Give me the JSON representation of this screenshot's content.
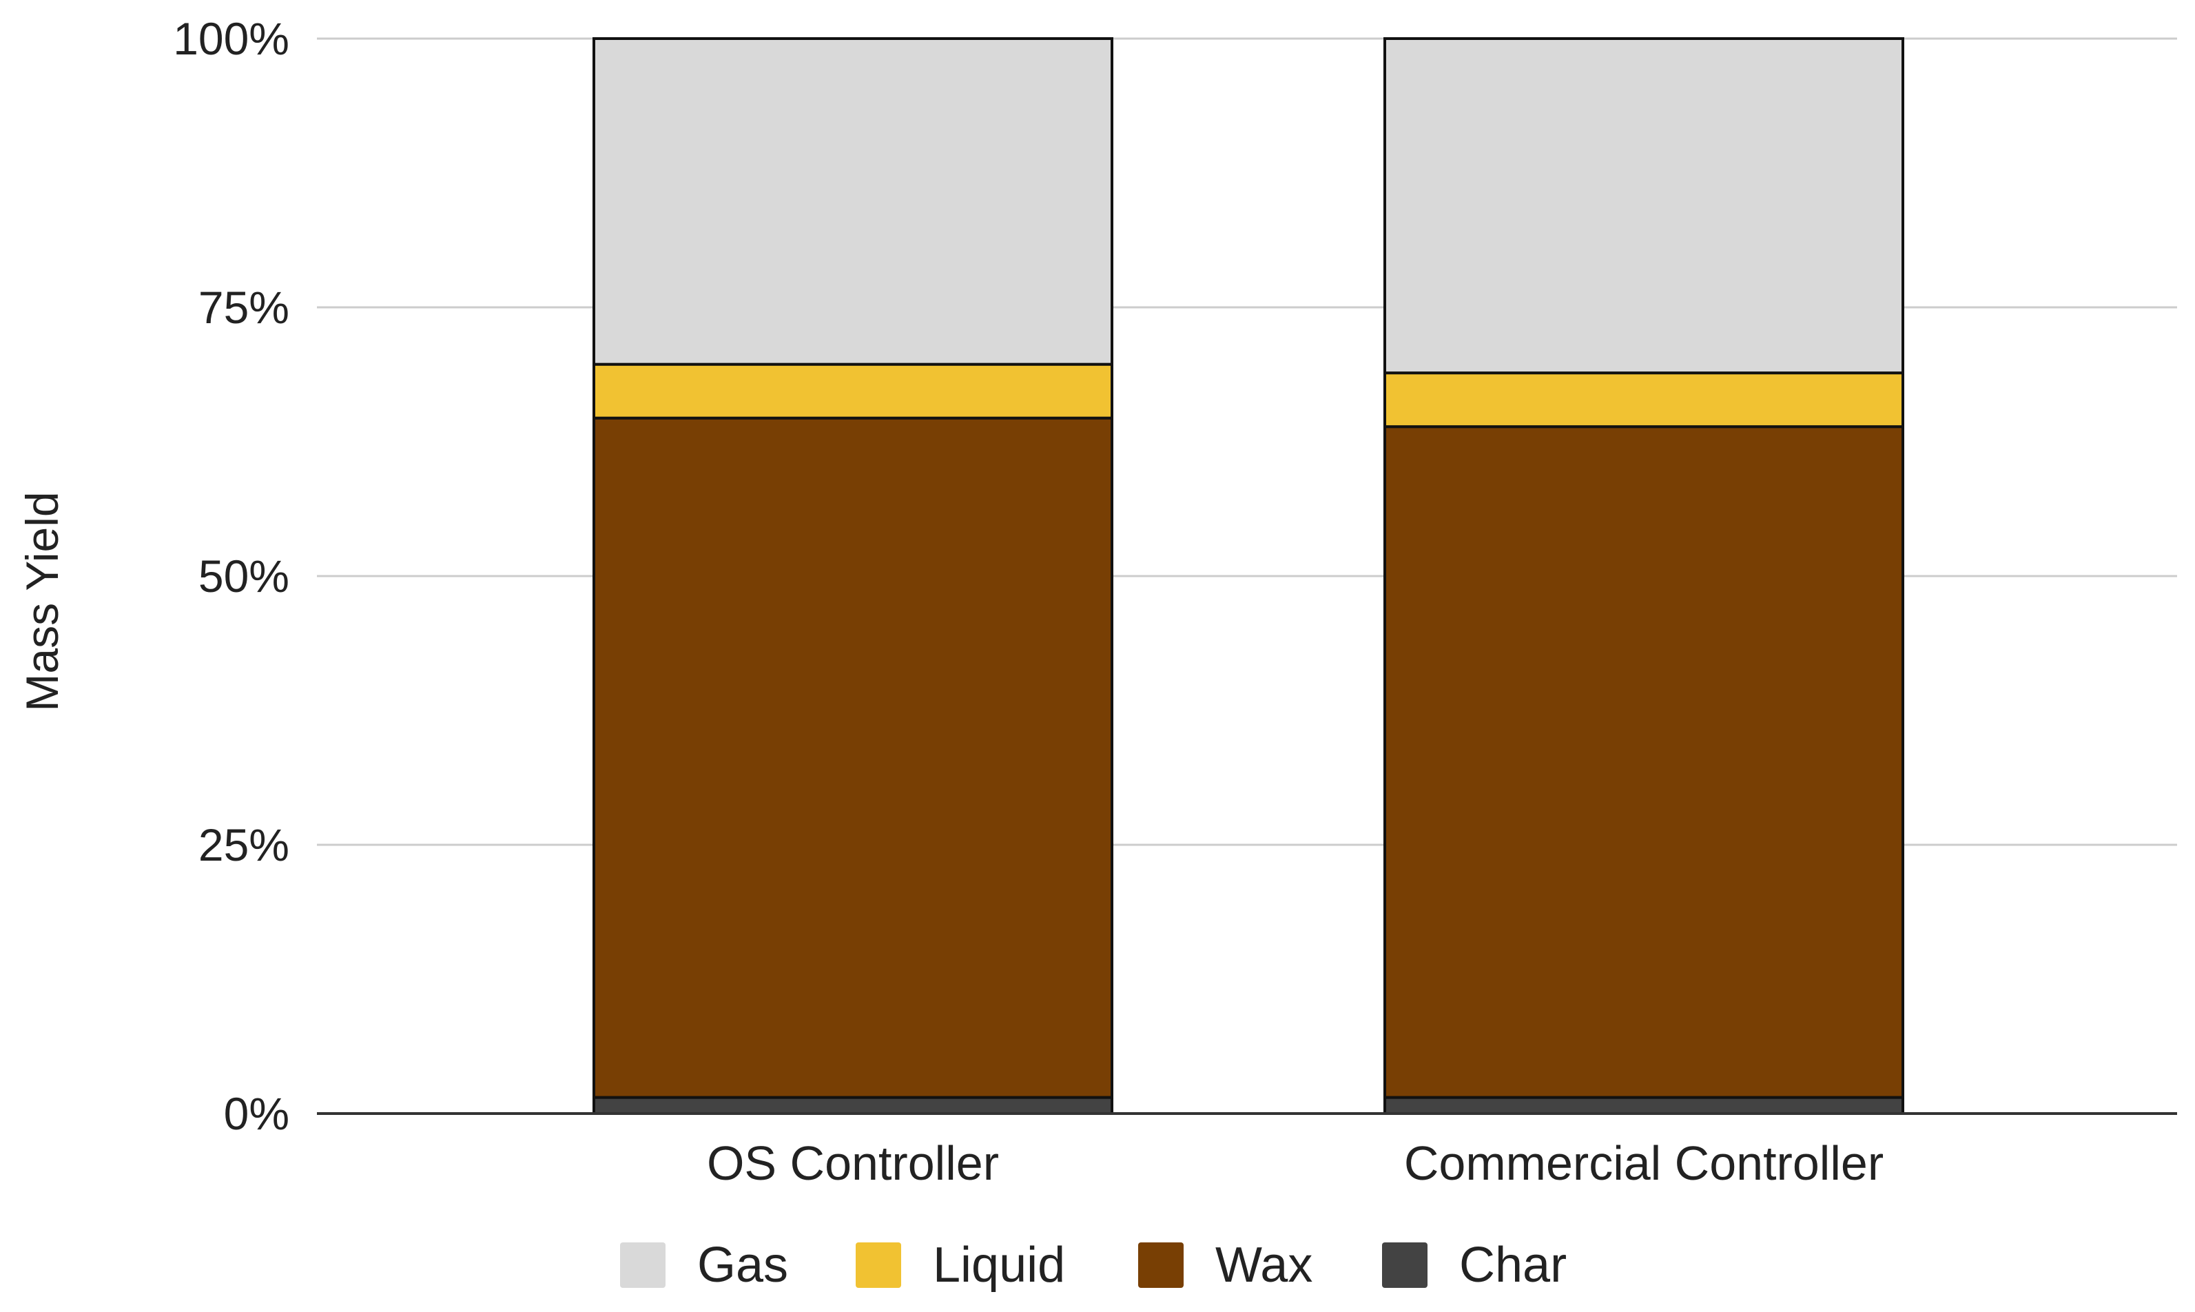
{
  "chart_data": {
    "type": "bar",
    "stacked": true,
    "normalized": true,
    "title": "",
    "xlabel": "",
    "ylabel": "Mass Yield",
    "ylim": [
      0,
      100
    ],
    "yticks": [
      0,
      25,
      50,
      75,
      100
    ],
    "ytick_labels": [
      "0%",
      "25%",
      "50%",
      "75%",
      "100%"
    ],
    "grid": true,
    "legend_position": "bottom",
    "categories": [
      "OS Controller",
      "Commercial Controller"
    ],
    "series": [
      {
        "name": "Char",
        "color": "#434343",
        "values": [
          1.5,
          1.5
        ]
      },
      {
        "name": "Wax",
        "color": "#783f04",
        "values": [
          63.2,
          62.4
        ]
      },
      {
        "name": "Liquid",
        "color": "#f1c232",
        "values": [
          5.0,
          5.0
        ]
      },
      {
        "name": "Gas",
        "color": "#d9d9d9",
        "values": [
          30.3,
          31.1
        ]
      }
    ],
    "legend_order": [
      "Gas",
      "Liquid",
      "Wax",
      "Char"
    ]
  }
}
